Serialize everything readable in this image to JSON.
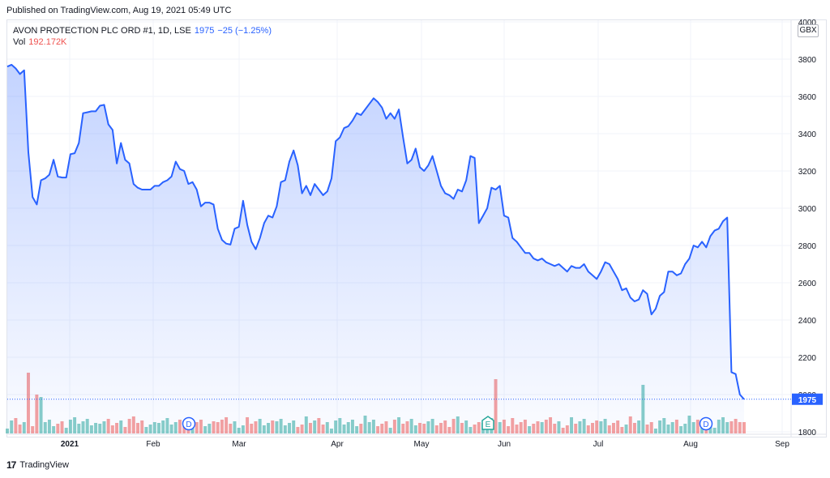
{
  "header": {
    "published": "Published on TradingView.com, Aug 19, 2021 05:49 UTC"
  },
  "legend": {
    "symbol": "AVON PROTECTION PLC ORD #1, 1D, LSE",
    "last": "1975",
    "change": "−25 (−1.25%)",
    "volume_label": "Vol",
    "volume_value": "192.172K"
  },
  "currency": "GBX",
  "last_price_tag": "1975",
  "footer": {
    "brand_mark": "17",
    "brand": "TradingView"
  },
  "colors": {
    "line": "#2962ff",
    "vol_up": "#26a69a",
    "vol_down": "#ef5350"
  },
  "chart_data": {
    "type": "area",
    "ylim": [
      1800,
      4000
    ],
    "y_ticks": [
      "1800",
      "2000",
      "2200",
      "2400",
      "2600",
      "2800",
      "3000",
      "3200",
      "3400",
      "3600",
      "3800",
      "4000"
    ],
    "x_ticks": [
      "2021",
      "Feb",
      "Mar",
      "Apr",
      "May",
      "Jun",
      "Jul",
      "Aug",
      "Sep"
    ],
    "markers": [
      "D",
      "E",
      "D"
    ],
    "series": [
      {
        "values": [
          3760,
          3770,
          3750,
          3720,
          3740,
          3300,
          3060,
          3020,
          3150,
          3160,
          3180,
          3260,
          3170,
          3165,
          3165,
          3290,
          3295,
          3350,
          3510,
          3515,
          3520,
          3520,
          3550,
          3555,
          3450,
          3420,
          3240,
          3350,
          3260,
          3240,
          3130,
          3110,
          3100,
          3100,
          3100,
          3120,
          3120,
          3140,
          3150,
          3170,
          3250,
          3210,
          3200,
          3130,
          3140,
          3100,
          3010,
          3030,
          3030,
          3020,
          2890,
          2830,
          2810,
          2805,
          2890,
          2900,
          3040,
          2910,
          2820,
          2780,
          2840,
          2920,
          2960,
          2950,
          3010,
          3140,
          3150,
          3250,
          3310,
          3230,
          3080,
          3120,
          3070,
          3130,
          3100,
          3070,
          3090,
          3160,
          3360,
          3380,
          3430,
          3440,
          3470,
          3510,
          3500,
          3530,
          3560,
          3590,
          3570,
          3540,
          3480,
          3510,
          3480,
          3530,
          3380,
          3240,
          3260,
          3320,
          3220,
          3200,
          3230,
          3280,
          3200,
          3120,
          3080,
          3070,
          3050,
          3100,
          3090,
          3150,
          3280,
          3270,
          2920,
          2960,
          3000,
          3110,
          3100,
          3120,
          2960,
          2950,
          2840,
          2820,
          2790,
          2760,
          2760,
          2730,
          2720,
          2730,
          2710,
          2700,
          2690,
          2700,
          2680,
          2660,
          2690,
          2680,
          2680,
          2700,
          2660,
          2640,
          2620,
          2660,
          2710,
          2700,
          2660,
          2620,
          2560,
          2570,
          2520,
          2500,
          2510,
          2560,
          2540,
          2430,
          2460,
          2530,
          2550,
          2660,
          2660,
          2640,
          2650,
          2700,
          2730,
          2800,
          2790,
          2820,
          2790,
          2850,
          2880,
          2890,
          2930,
          2950,
          2120,
          2110,
          2000,
          1975
        ],
        "volumes": [
          [
            1,
            0
          ],
          [
            0,
            1
          ],
          [
            0,
            0
          ],
          [
            1,
            0
          ],
          [
            5,
            1
          ],
          [
            3,
            0
          ],
          [
            3,
            0
          ],
          [
            1,
            1
          ],
          [
            1,
            0
          ],
          [
            0,
            1
          ],
          [
            0,
            0
          ],
          [
            2,
            1
          ],
          [
            0,
            0
          ],
          [
            1,
            1
          ],
          [
            1,
            0
          ],
          [
            0,
            0
          ],
          [
            1,
            1
          ],
          [
            1,
            0
          ],
          [
            0,
            0
          ],
          [
            1,
            1
          ],
          [
            1,
            0
          ],
          [
            0,
            0
          ],
          [
            1,
            1
          ],
          [
            1,
            0
          ],
          [
            0,
            0
          ],
          [
            1,
            1
          ]
        ]
      }
    ]
  }
}
